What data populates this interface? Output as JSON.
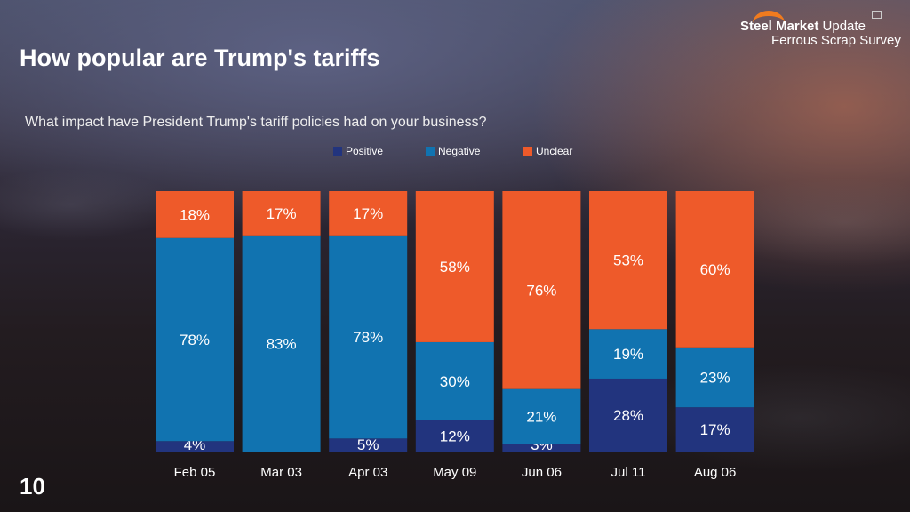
{
  "header": {
    "title": "How popular are Trump's tariffs",
    "page_number": "10"
  },
  "logo": {
    "line1_bold": "Steel Market",
    "line1_rest": " Update",
    "line2": "Ferrous Scrap Survey"
  },
  "chart_data": {
    "type": "bar",
    "stacked": true,
    "title": "What impact have President Trump's tariff policies had on your business?",
    "categories": [
      "Feb 05",
      "Mar 03",
      "Apr 03",
      "May 09",
      "Jun 06",
      "Jul 11",
      "Aug 06"
    ],
    "series": [
      {
        "name": "Positive",
        "color": "#22347e",
        "values": [
          4,
          0,
          5,
          12,
          3,
          28,
          17
        ],
        "labels": [
          "4%",
          "",
          "5%",
          "12%",
          "3%",
          "28%",
          "17%"
        ]
      },
      {
        "name": "Negative",
        "color": "#1173b0",
        "values": [
          78,
          83,
          78,
          30,
          21,
          19,
          23
        ],
        "labels": [
          "78%",
          "83%",
          "78%",
          "30%",
          "21%",
          "19%",
          "23%"
        ]
      },
      {
        "name": "Unclear",
        "color": "#ee5a2a",
        "values": [
          18,
          17,
          17,
          58,
          76,
          53,
          60
        ],
        "labels": [
          "18%",
          "17%",
          "17%",
          "58%",
          "76%",
          "53%",
          "60%"
        ]
      }
    ],
    "ylim": [
      0,
      100
    ],
    "legend": "top",
    "grid": false
  }
}
